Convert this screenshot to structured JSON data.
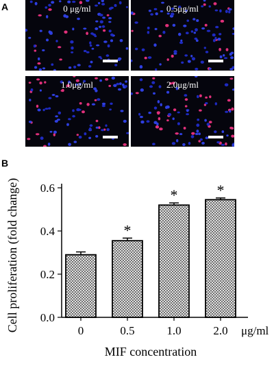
{
  "panel_a": {
    "letter": "A",
    "images": [
      {
        "label": "0 μg/ml",
        "red_cells": 12
      },
      {
        "label": "0.5μg/ml",
        "red_cells": 16
      },
      {
        "label": "1.0μg/ml",
        "red_cells": 30
      },
      {
        "label": "2.0μg/ml",
        "red_cells": 34
      }
    ]
  },
  "panel_b": {
    "letter": "B"
  },
  "chart_data": {
    "type": "bar",
    "categories": [
      "0",
      "0.5",
      "1.0",
      "2.0"
    ],
    "values": [
      0.29,
      0.355,
      0.52,
      0.545
    ],
    "errors": [
      0.013,
      0.012,
      0.01,
      0.008
    ],
    "significance": [
      "",
      "*",
      "*",
      "*"
    ],
    "xlabel": "MIF concentration",
    "xunit": "μg/ml",
    "ylabel": "Cell proliferation (fold change)",
    "ylim": [
      0,
      0.6
    ],
    "yticks": [
      "0.0",
      "0.2",
      "0.4",
      "0.6"
    ],
    "bar_pattern": "cross-hatch"
  }
}
